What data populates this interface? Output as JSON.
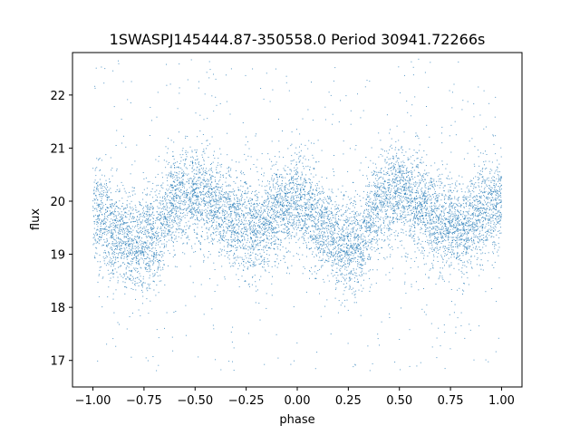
{
  "chart_data": {
    "type": "scatter",
    "title": "1SWASPJ145444.87-350558.0 Period 30941.72266s",
    "xlabel": "phase",
    "ylabel": "flux",
    "xlim": [
      -1.1,
      1.1
    ],
    "ylim": [
      16.5,
      22.8
    ],
    "x_ticks": [
      -1.0,
      -0.75,
      -0.5,
      -0.25,
      0.0,
      0.25,
      0.5,
      0.75,
      1.0
    ],
    "x_tick_labels": [
      "−1.00",
      "−0.75",
      "−0.50",
      "−0.25",
      "0.00",
      "0.25",
      "0.50",
      "0.75",
      "1.00"
    ],
    "y_ticks": [
      17,
      18,
      19,
      20,
      21,
      22
    ],
    "y_tick_labels": [
      "17",
      "18",
      "19",
      "20",
      "21",
      "22"
    ],
    "grid": false,
    "marker_color": "#1f77b4",
    "trend_x": [
      -1.0,
      -0.9,
      -0.8,
      -0.7,
      -0.6,
      -0.5,
      -0.4,
      -0.3,
      -0.2,
      -0.1,
      0.0,
      0.1,
      0.2,
      0.3,
      0.4,
      0.5,
      0.6,
      0.7,
      0.8,
      0.9,
      1.0
    ],
    "trend_y": [
      19.8,
      19.5,
      19.2,
      19.3,
      20.1,
      20.2,
      19.9,
      19.6,
      19.5,
      19.8,
      20.0,
      19.6,
      19.2,
      19.2,
      20.0,
      20.2,
      19.9,
      19.6,
      19.5,
      19.8,
      20.0
    ],
    "trend_spread": 0.45,
    "point_count": 9000
  }
}
